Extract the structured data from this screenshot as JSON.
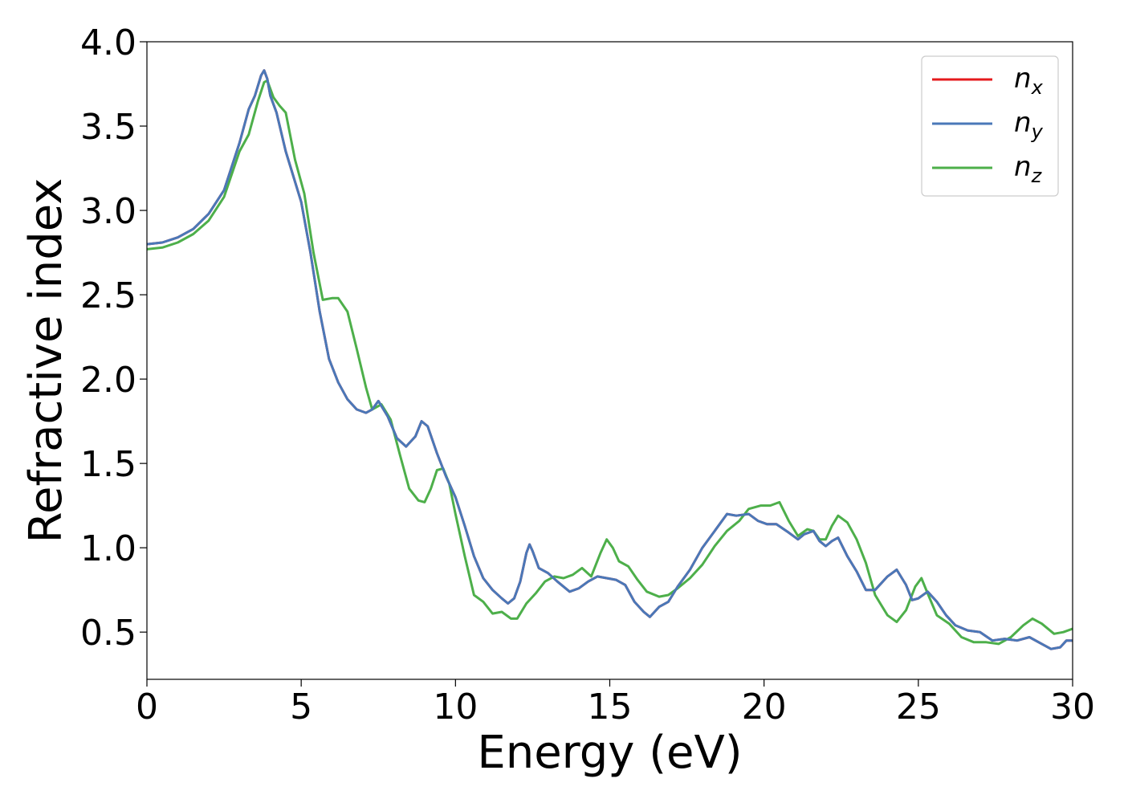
{
  "chart_data": {
    "type": "line",
    "title": "",
    "xlabel": "Energy (eV)",
    "ylabel": "Refractive index",
    "xlim": [
      0,
      30
    ],
    "ylim": [
      0.22,
      4.0
    ],
    "xticks": [
      "0",
      "5",
      "10",
      "15",
      "20",
      "25",
      "30"
    ],
    "yticks": [
      "0.5",
      "1.0",
      "1.5",
      "2.0",
      "2.5",
      "3.0",
      "3.5",
      "4.0"
    ],
    "grid": false,
    "legend_position": "top-right",
    "series": [
      {
        "name": "n_x",
        "label_base": "n",
        "label_sub": "x",
        "color": "#e41a1c",
        "points": [
          [
            0,
            2.8
          ],
          [
            0.5,
            2.81
          ],
          [
            1,
            2.84
          ],
          [
            1.5,
            2.89
          ],
          [
            2,
            2.98
          ],
          [
            2.5,
            3.12
          ],
          [
            3,
            3.4
          ],
          [
            3.3,
            3.6
          ],
          [
            3.5,
            3.68
          ],
          [
            3.7,
            3.8
          ],
          [
            3.8,
            3.83
          ],
          [
            3.9,
            3.78
          ],
          [
            4.0,
            3.68
          ],
          [
            4.2,
            3.58
          ],
          [
            4.5,
            3.35
          ],
          [
            5,
            3.05
          ],
          [
            5.3,
            2.75
          ],
          [
            5.6,
            2.4
          ],
          [
            5.9,
            2.12
          ],
          [
            6.2,
            1.98
          ],
          [
            6.5,
            1.88
          ],
          [
            6.8,
            1.82
          ],
          [
            7.1,
            1.8
          ],
          [
            7.3,
            1.82
          ],
          [
            7.5,
            1.87
          ],
          [
            7.8,
            1.78
          ],
          [
            8.1,
            1.65
          ],
          [
            8.4,
            1.6
          ],
          [
            8.7,
            1.66
          ],
          [
            8.9,
            1.75
          ],
          [
            9.1,
            1.72
          ],
          [
            9.4,
            1.56
          ],
          [
            9.7,
            1.42
          ],
          [
            10.0,
            1.3
          ],
          [
            10.3,
            1.13
          ],
          [
            10.6,
            0.95
          ],
          [
            10.9,
            0.82
          ],
          [
            11.2,
            0.75
          ],
          [
            11.5,
            0.7
          ],
          [
            11.7,
            0.67
          ],
          [
            11.9,
            0.7
          ],
          [
            12.1,
            0.8
          ],
          [
            12.3,
            0.97
          ],
          [
            12.4,
            1.02
          ],
          [
            12.5,
            0.98
          ],
          [
            12.7,
            0.88
          ],
          [
            13.0,
            0.85
          ],
          [
            13.3,
            0.8
          ],
          [
            13.7,
            0.74
          ],
          [
            14.0,
            0.76
          ],
          [
            14.3,
            0.8
          ],
          [
            14.6,
            0.83
          ],
          [
            14.9,
            0.82
          ],
          [
            15.2,
            0.81
          ],
          [
            15.5,
            0.78
          ],
          [
            15.8,
            0.68
          ],
          [
            16.1,
            0.62
          ],
          [
            16.3,
            0.59
          ],
          [
            16.6,
            0.65
          ],
          [
            16.9,
            0.68
          ],
          [
            17.2,
            0.77
          ],
          [
            17.6,
            0.87
          ],
          [
            18.0,
            1.0
          ],
          [
            18.4,
            1.1
          ],
          [
            18.8,
            1.2
          ],
          [
            19.1,
            1.19
          ],
          [
            19.5,
            1.2
          ],
          [
            19.8,
            1.16
          ],
          [
            20.1,
            1.14
          ],
          [
            20.4,
            1.14
          ],
          [
            20.8,
            1.09
          ],
          [
            21.1,
            1.05
          ],
          [
            21.3,
            1.08
          ],
          [
            21.6,
            1.1
          ],
          [
            21.8,
            1.04
          ],
          [
            22.0,
            1.01
          ],
          [
            22.2,
            1.04
          ],
          [
            22.4,
            1.06
          ],
          [
            22.7,
            0.95
          ],
          [
            23.0,
            0.86
          ],
          [
            23.3,
            0.75
          ],
          [
            23.6,
            0.75
          ],
          [
            24.0,
            0.83
          ],
          [
            24.3,
            0.87
          ],
          [
            24.6,
            0.78
          ],
          [
            24.8,
            0.69
          ],
          [
            25.0,
            0.7
          ],
          [
            25.3,
            0.74
          ],
          [
            25.6,
            0.68
          ],
          [
            25.9,
            0.6
          ],
          [
            26.2,
            0.54
          ],
          [
            26.6,
            0.51
          ],
          [
            27.0,
            0.5
          ],
          [
            27.4,
            0.45
          ],
          [
            27.8,
            0.46
          ],
          [
            28.2,
            0.45
          ],
          [
            28.6,
            0.47
          ],
          [
            29.0,
            0.43
          ],
          [
            29.3,
            0.4
          ],
          [
            29.6,
            0.41
          ],
          [
            29.8,
            0.45
          ],
          [
            30,
            0.45
          ]
        ]
      },
      {
        "name": "n_y",
        "label_base": "n",
        "label_sub": "y",
        "color": "#4a78b8",
        "points": [
          [
            0,
            2.8
          ],
          [
            0.5,
            2.81
          ],
          [
            1,
            2.84
          ],
          [
            1.5,
            2.89
          ],
          [
            2,
            2.98
          ],
          [
            2.5,
            3.12
          ],
          [
            3,
            3.4
          ],
          [
            3.3,
            3.6
          ],
          [
            3.5,
            3.68
          ],
          [
            3.7,
            3.8
          ],
          [
            3.8,
            3.83
          ],
          [
            3.9,
            3.78
          ],
          [
            4.0,
            3.68
          ],
          [
            4.2,
            3.58
          ],
          [
            4.5,
            3.35
          ],
          [
            5,
            3.05
          ],
          [
            5.3,
            2.75
          ],
          [
            5.6,
            2.4
          ],
          [
            5.9,
            2.12
          ],
          [
            6.2,
            1.98
          ],
          [
            6.5,
            1.88
          ],
          [
            6.8,
            1.82
          ],
          [
            7.1,
            1.8
          ],
          [
            7.3,
            1.82
          ],
          [
            7.5,
            1.87
          ],
          [
            7.8,
            1.78
          ],
          [
            8.1,
            1.65
          ],
          [
            8.4,
            1.6
          ],
          [
            8.7,
            1.66
          ],
          [
            8.9,
            1.75
          ],
          [
            9.1,
            1.72
          ],
          [
            9.4,
            1.56
          ],
          [
            9.7,
            1.42
          ],
          [
            10.0,
            1.3
          ],
          [
            10.3,
            1.13
          ],
          [
            10.6,
            0.95
          ],
          [
            10.9,
            0.82
          ],
          [
            11.2,
            0.75
          ],
          [
            11.5,
            0.7
          ],
          [
            11.7,
            0.67
          ],
          [
            11.9,
            0.7
          ],
          [
            12.1,
            0.8
          ],
          [
            12.3,
            0.97
          ],
          [
            12.4,
            1.02
          ],
          [
            12.5,
            0.98
          ],
          [
            12.7,
            0.88
          ],
          [
            13.0,
            0.85
          ],
          [
            13.3,
            0.8
          ],
          [
            13.7,
            0.74
          ],
          [
            14.0,
            0.76
          ],
          [
            14.3,
            0.8
          ],
          [
            14.6,
            0.83
          ],
          [
            14.9,
            0.82
          ],
          [
            15.2,
            0.81
          ],
          [
            15.5,
            0.78
          ],
          [
            15.8,
            0.68
          ],
          [
            16.1,
            0.62
          ],
          [
            16.3,
            0.59
          ],
          [
            16.6,
            0.65
          ],
          [
            16.9,
            0.68
          ],
          [
            17.2,
            0.77
          ],
          [
            17.6,
            0.87
          ],
          [
            18.0,
            1.0
          ],
          [
            18.4,
            1.1
          ],
          [
            18.8,
            1.2
          ],
          [
            19.1,
            1.19
          ],
          [
            19.5,
            1.2
          ],
          [
            19.8,
            1.16
          ],
          [
            20.1,
            1.14
          ],
          [
            20.4,
            1.14
          ],
          [
            20.8,
            1.09
          ],
          [
            21.1,
            1.05
          ],
          [
            21.3,
            1.08
          ],
          [
            21.6,
            1.1
          ],
          [
            21.8,
            1.04
          ],
          [
            22.0,
            1.01
          ],
          [
            22.2,
            1.04
          ],
          [
            22.4,
            1.06
          ],
          [
            22.7,
            0.95
          ],
          [
            23.0,
            0.86
          ],
          [
            23.3,
            0.75
          ],
          [
            23.6,
            0.75
          ],
          [
            24.0,
            0.83
          ],
          [
            24.3,
            0.87
          ],
          [
            24.6,
            0.78
          ],
          [
            24.8,
            0.69
          ],
          [
            25.0,
            0.7
          ],
          [
            25.3,
            0.74
          ],
          [
            25.6,
            0.68
          ],
          [
            25.9,
            0.6
          ],
          [
            26.2,
            0.54
          ],
          [
            26.6,
            0.51
          ],
          [
            27.0,
            0.5
          ],
          [
            27.4,
            0.45
          ],
          [
            27.8,
            0.46
          ],
          [
            28.2,
            0.45
          ],
          [
            28.6,
            0.47
          ],
          [
            29.0,
            0.43
          ],
          [
            29.3,
            0.4
          ],
          [
            29.6,
            0.41
          ],
          [
            29.8,
            0.45
          ],
          [
            30,
            0.45
          ]
        ]
      },
      {
        "name": "n_z",
        "label_base": "n",
        "label_sub": "z",
        "color": "#4daf4a",
        "points": [
          [
            0,
            2.77
          ],
          [
            0.5,
            2.78
          ],
          [
            1,
            2.81
          ],
          [
            1.5,
            2.86
          ],
          [
            2,
            2.94
          ],
          [
            2.5,
            3.08
          ],
          [
            3,
            3.35
          ],
          [
            3.3,
            3.45
          ],
          [
            3.6,
            3.65
          ],
          [
            3.8,
            3.76
          ],
          [
            3.9,
            3.77
          ],
          [
            4.1,
            3.67
          ],
          [
            4.3,
            3.62
          ],
          [
            4.5,
            3.58
          ],
          [
            4.8,
            3.3
          ],
          [
            5.1,
            3.1
          ],
          [
            5.4,
            2.75
          ],
          [
            5.7,
            2.47
          ],
          [
            6.0,
            2.48
          ],
          [
            6.2,
            2.48
          ],
          [
            6.5,
            2.4
          ],
          [
            6.8,
            2.18
          ],
          [
            7.1,
            1.95
          ],
          [
            7.3,
            1.82
          ],
          [
            7.6,
            1.85
          ],
          [
            7.9,
            1.76
          ],
          [
            8.2,
            1.55
          ],
          [
            8.5,
            1.35
          ],
          [
            8.8,
            1.28
          ],
          [
            9.0,
            1.27
          ],
          [
            9.2,
            1.35
          ],
          [
            9.4,
            1.46
          ],
          [
            9.6,
            1.47
          ],
          [
            9.8,
            1.38
          ],
          [
            10.0,
            1.2
          ],
          [
            10.3,
            0.95
          ],
          [
            10.6,
            0.72
          ],
          [
            10.9,
            0.68
          ],
          [
            11.2,
            0.61
          ],
          [
            11.5,
            0.62
          ],
          [
            11.8,
            0.58
          ],
          [
            12.0,
            0.58
          ],
          [
            12.3,
            0.67
          ],
          [
            12.6,
            0.73
          ],
          [
            12.9,
            0.8
          ],
          [
            13.2,
            0.83
          ],
          [
            13.5,
            0.82
          ],
          [
            13.8,
            0.84
          ],
          [
            14.1,
            0.88
          ],
          [
            14.4,
            0.83
          ],
          [
            14.7,
            0.97
          ],
          [
            14.9,
            1.05
          ],
          [
            15.1,
            1.0
          ],
          [
            15.3,
            0.92
          ],
          [
            15.6,
            0.89
          ],
          [
            15.9,
            0.81
          ],
          [
            16.2,
            0.74
          ],
          [
            16.6,
            0.71
          ],
          [
            16.9,
            0.72
          ],
          [
            17.2,
            0.76
          ],
          [
            17.6,
            0.82
          ],
          [
            18.0,
            0.9
          ],
          [
            18.4,
            1.01
          ],
          [
            18.8,
            1.1
          ],
          [
            19.2,
            1.16
          ],
          [
            19.5,
            1.23
          ],
          [
            19.9,
            1.25
          ],
          [
            20.2,
            1.25
          ],
          [
            20.5,
            1.27
          ],
          [
            20.8,
            1.16
          ],
          [
            21.1,
            1.07
          ],
          [
            21.4,
            1.11
          ],
          [
            21.6,
            1.1
          ],
          [
            21.8,
            1.05
          ],
          [
            22.0,
            1.05
          ],
          [
            22.2,
            1.13
          ],
          [
            22.4,
            1.19
          ],
          [
            22.7,
            1.15
          ],
          [
            23.0,
            1.05
          ],
          [
            23.3,
            0.91
          ],
          [
            23.6,
            0.72
          ],
          [
            24.0,
            0.6
          ],
          [
            24.3,
            0.56
          ],
          [
            24.6,
            0.63
          ],
          [
            24.9,
            0.77
          ],
          [
            25.1,
            0.82
          ],
          [
            25.3,
            0.73
          ],
          [
            25.6,
            0.6
          ],
          [
            26.0,
            0.55
          ],
          [
            26.4,
            0.47
          ],
          [
            26.8,
            0.44
          ],
          [
            27.2,
            0.44
          ],
          [
            27.6,
            0.43
          ],
          [
            28.0,
            0.47
          ],
          [
            28.4,
            0.54
          ],
          [
            28.7,
            0.58
          ],
          [
            29.0,
            0.55
          ],
          [
            29.4,
            0.49
          ],
          [
            29.7,
            0.5
          ],
          [
            30,
            0.52
          ]
        ]
      }
    ]
  }
}
